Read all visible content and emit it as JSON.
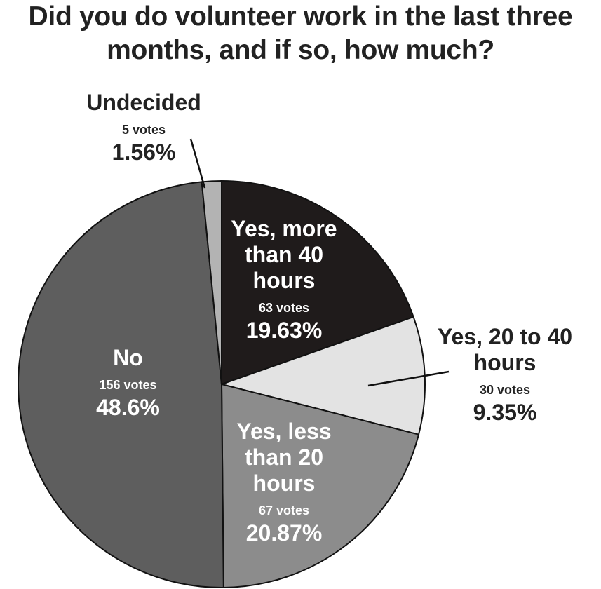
{
  "chart_data": {
    "type": "pie",
    "title": "Did you do volunteer work in the last three months, and if so, how much?",
    "categories": [
      "Yes, more than 40 hours",
      "Yes, 20 to 40 hours",
      "Yes, less than 20 hours",
      "No",
      "Undecided"
    ],
    "values": [
      19.63,
      9.35,
      20.87,
      48.6,
      1.56
    ],
    "value_labels": [
      "19.63%",
      "9.35%",
      "20.87%",
      "48.6%",
      "1.56%"
    ],
    "votes": [
      63,
      30,
      67,
      156,
      5
    ],
    "vote_labels": [
      "63 votes",
      "30 votes",
      "67 votes",
      "156 votes",
      "5 votes"
    ],
    "colors": [
      "#1f1b1b",
      "#e3e3e3",
      "#8c8c8c",
      "#5e5e5e",
      "#b3b3b3"
    ]
  }
}
